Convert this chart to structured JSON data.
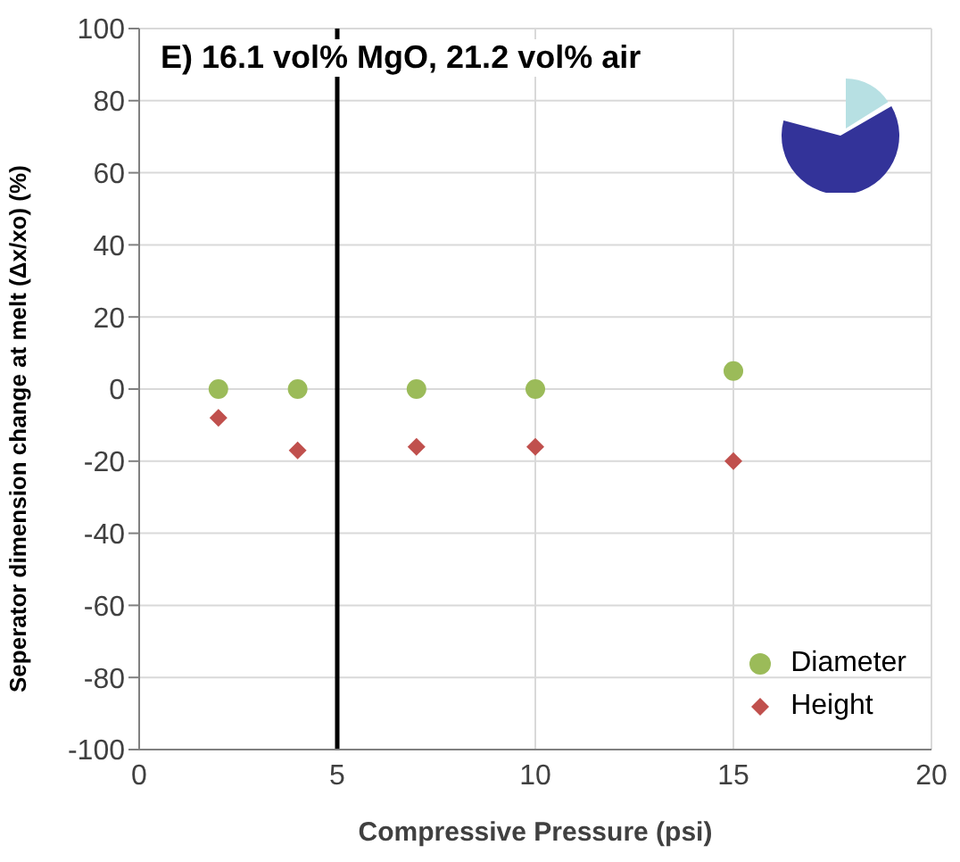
{
  "chart_data": {
    "type": "scatter",
    "title": "E) 16.1 vol% MgO, 21.2 vol% air",
    "xlabel": "Compressive Pressure (psi)",
    "ylabel": "Seperator dimension change at melt (Δx/xo) (%)",
    "x": [
      2,
      4,
      7,
      10,
      15
    ],
    "series": [
      {
        "name": "Diameter",
        "color": "#9bbb59",
        "marker": "circle",
        "values": [
          0,
          0,
          0,
          0,
          5
        ]
      },
      {
        "name": "Height",
        "color": "#c0504d",
        "marker": "diamond",
        "values": [
          -8,
          -17,
          -16,
          -16,
          -20
        ]
      }
    ],
    "xlim": [
      0,
      20
    ],
    "xticks": [
      0,
      5,
      10,
      15,
      20
    ],
    "ylim": [
      -100,
      100
    ],
    "yticks": [
      -100,
      -80,
      -60,
      -40,
      -20,
      0,
      20,
      40,
      60,
      80,
      100
    ],
    "ref_lines": [
      {
        "axis": "x",
        "value": 5,
        "color": "#000000"
      }
    ],
    "grid": true,
    "legend": "bottom right"
  }
}
